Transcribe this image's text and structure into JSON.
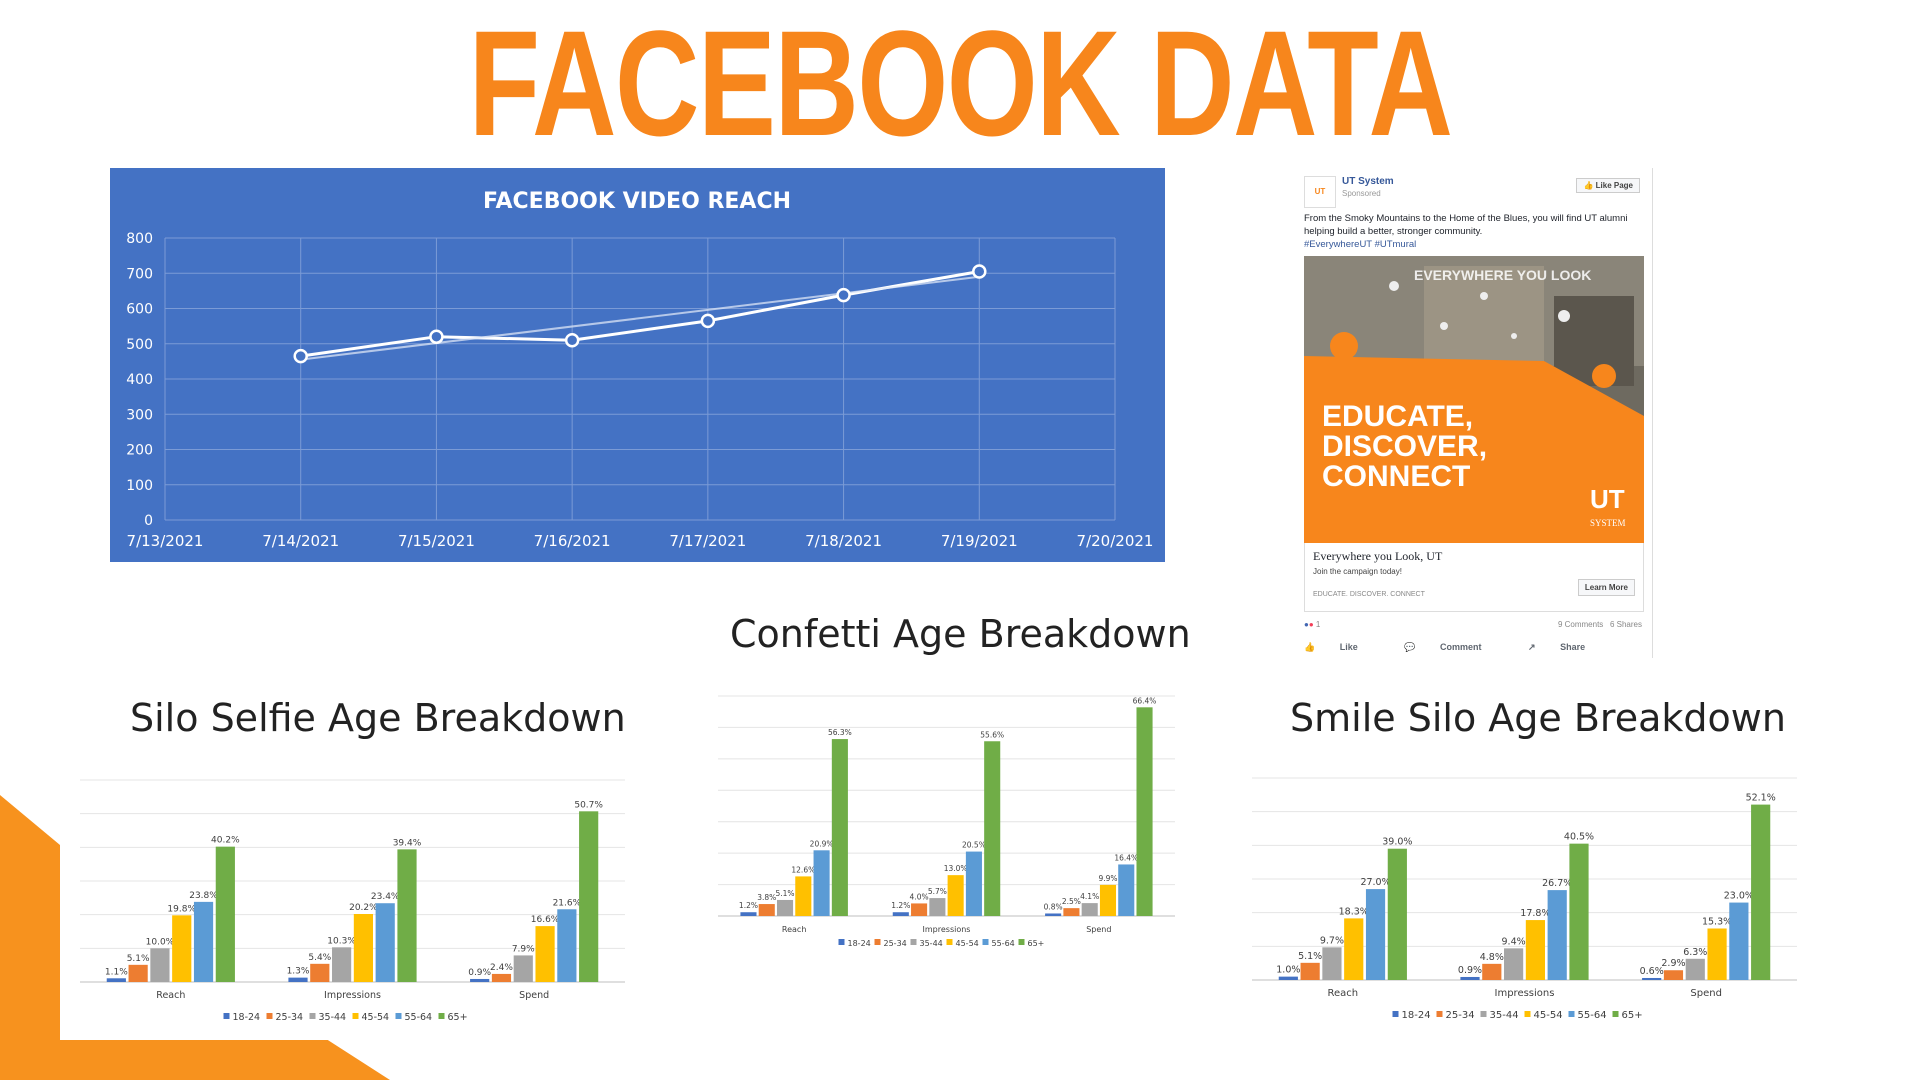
{
  "title": "FACEBOOK DATA",
  "colors": {
    "title_orange": "#F7861C",
    "reach_bg": "#4472C4",
    "series": [
      "#4472C4",
      "#ED7D31",
      "#A5A5A5",
      "#FFC000",
      "#5B9BD5",
      "#70AD47"
    ]
  },
  "chart_data": [
    {
      "type": "line",
      "title": "FACEBOOK VIDEO REACH",
      "x": [
        "7/13/2021",
        "7/14/2021",
        "7/15/2021",
        "7/16/2021",
        "7/17/2021",
        "7/18/2021",
        "7/19/2021",
        "7/20/2021"
      ],
      "series": [
        {
          "points": [
            [
              "7/14/2021",
              465
            ],
            [
              "7/15/2021",
              520
            ],
            [
              "7/16/2021",
              510
            ],
            [
              "7/17/2021",
              565
            ],
            [
              "7/18/2021",
              638
            ],
            [
              "7/19/2021",
              705
            ]
          ]
        },
        {
          "points": [
            [
              "7/14/2021",
              455
            ],
            [
              "7/19/2021",
              690
            ]
          ]
        }
      ],
      "ylim": [
        0,
        800
      ],
      "yticks": [
        0,
        100,
        200,
        300,
        400,
        500,
        600,
        700,
        800
      ],
      "grid": true
    },
    {
      "type": "bar",
      "title": "Silo Selfie Age Breakdown",
      "categories": [
        "Reach",
        "Impressions",
        "Spend"
      ],
      "series": [
        {
          "name": "18-24",
          "values": [
            1.1,
            1.3,
            0.9
          ],
          "labels": [
            "1.1%",
            "1.3%",
            "0.9%"
          ]
        },
        {
          "name": "25-34",
          "values": [
            5.1,
            5.4,
            2.4
          ],
          "labels": [
            "5.1%",
            "5.4%",
            "2.4%"
          ]
        },
        {
          "name": "35-44",
          "values": [
            10.0,
            10.3,
            7.9
          ],
          "labels": [
            "10.0%",
            "10.3%",
            "7.9%"
          ]
        },
        {
          "name": "45-54",
          "values": [
            19.8,
            20.2,
            16.6
          ],
          "labels": [
            "19.8%",
            "20.2%",
            "16.6%"
          ]
        },
        {
          "name": "55-64",
          "values": [
            23.8,
            23.4,
            21.6
          ],
          "labels": [
            "23.8%",
            "23.4%",
            "21.6%"
          ]
        },
        {
          "name": "65+",
          "values": [
            40.2,
            39.4,
            50.7
          ],
          "labels": [
            "40.2%",
            "39.4%",
            "50.7%"
          ]
        }
      ],
      "ylim": [
        0,
        60
      ],
      "legend": "bottom",
      "grid": true
    },
    {
      "type": "bar",
      "title": "Confetti Age Breakdown",
      "categories": [
        "Reach",
        "Impressions",
        "Spend"
      ],
      "series": [
        {
          "name": "18-24",
          "values": [
            1.2,
            1.2,
            0.8
          ],
          "labels": [
            "1.2%",
            "1.2%",
            "0.8%"
          ]
        },
        {
          "name": "25-34",
          "values": [
            3.8,
            4.0,
            2.5
          ],
          "labels": [
            "3.8%",
            "4.0%",
            "2.5%"
          ]
        },
        {
          "name": "35-44",
          "values": [
            5.1,
            5.7,
            4.1
          ],
          "labels": [
            "5.1%",
            "5.7%",
            "4.1%"
          ]
        },
        {
          "name": "45-54",
          "values": [
            12.6,
            13.0,
            9.9
          ],
          "labels": [
            "12.6%",
            "13.0%",
            "9.9%"
          ]
        },
        {
          "name": "55-64",
          "values": [
            20.9,
            20.5,
            16.4
          ],
          "labels": [
            "20.9%",
            "20.5%",
            "16.4%"
          ]
        },
        {
          "name": "65+",
          "values": [
            56.3,
            55.6,
            66.4
          ],
          "labels": [
            "56.3%",
            "55.6%",
            "66.4%"
          ]
        }
      ],
      "ylim": [
        0,
        70
      ],
      "legend": "bottom",
      "grid": true
    },
    {
      "type": "bar",
      "title": "Smile Silo Age Breakdown",
      "categories": [
        "Reach",
        "Impressions",
        "Spend"
      ],
      "series": [
        {
          "name": "18-24",
          "values": [
            1.0,
            0.9,
            0.6
          ],
          "labels": [
            "1.0%",
            "0.9%",
            "0.6%"
          ]
        },
        {
          "name": "25-34",
          "values": [
            5.1,
            4.8,
            2.9
          ],
          "labels": [
            "5.1%",
            "4.8%",
            "2.9%"
          ]
        },
        {
          "name": "35-44",
          "values": [
            9.7,
            9.4,
            6.3
          ],
          "labels": [
            "9.7%",
            "9.4%",
            "6.3%"
          ]
        },
        {
          "name": "45-54",
          "values": [
            18.3,
            17.8,
            15.3
          ],
          "labels": [
            "18.3%",
            "17.8%",
            "15.3%"
          ]
        },
        {
          "name": "55-64",
          "values": [
            27.0,
            26.7,
            23.0
          ],
          "labels": [
            "27.0%",
            "26.7%",
            "23.0%"
          ]
        },
        {
          "name": "65+",
          "values": [
            39.0,
            40.5,
            52.1
          ],
          "labels": [
            "39.0%",
            "40.5%",
            "52.1%"
          ]
        }
      ],
      "ylim": [
        0,
        60
      ],
      "legend": "bottom",
      "grid": true
    }
  ],
  "ad": {
    "logo": "UT",
    "page_name": "UT System",
    "sponsored": "Sponsored",
    "like_page": "Like Page",
    "text": "From the Smoky Mountains to the Home of the Blues, you will find UT alumni helping build a better, stronger community.",
    "hashtags": "#EverywhereUT #UTmural",
    "image_overlay_small": "EVERYWHERE YOU LOOK",
    "image_headline": [
      "EDUCATE,",
      "DISCOVER,",
      "CONNECT"
    ],
    "image_brand": "UT",
    "image_brand_sub": "SYSTEM",
    "caption_title": "Everywhere you Look, UT",
    "caption_sub": "Join the campaign today!",
    "caption_url": "EDUCATE. DISCOVER. CONNECT",
    "learn_more": "Learn More",
    "reaction_count": "1",
    "comments": "9 Comments",
    "shares": "6 Shares",
    "actions": [
      "Like",
      "Comment",
      "Share"
    ]
  }
}
